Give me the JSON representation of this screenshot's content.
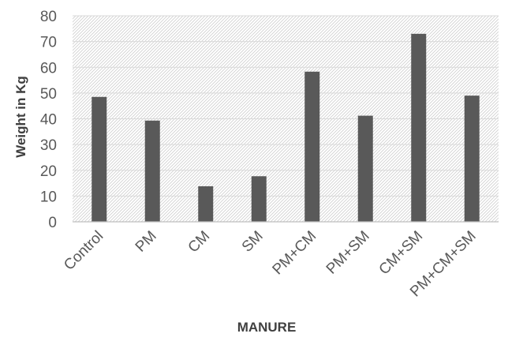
{
  "chart_data": {
    "type": "bar",
    "title": "",
    "xlabel": "MANURE",
    "ylabel": "Weight in Kg",
    "categories": [
      "Control",
      "PM",
      "CM",
      "SM",
      "PM+CM",
      "PM+SM",
      "CM+SM",
      "PM+CM+SM"
    ],
    "series": [
      {
        "values": [
          48.5,
          39.3,
          13.8,
          17.7,
          58.3,
          41.2,
          73.0,
          49.0
        ]
      }
    ],
    "ylim": [
      0,
      80
    ],
    "yticks": [
      "0",
      "10",
      "20",
      "30",
      "40",
      "50",
      "60",
      "70",
      "80"
    ],
    "grid": true,
    "legend": "none",
    "colors": {
      "bar": "#595959",
      "gridline": "#d9d9d9",
      "hatch": "#d0d0d0",
      "axis": "#bfbfbf"
    }
  }
}
